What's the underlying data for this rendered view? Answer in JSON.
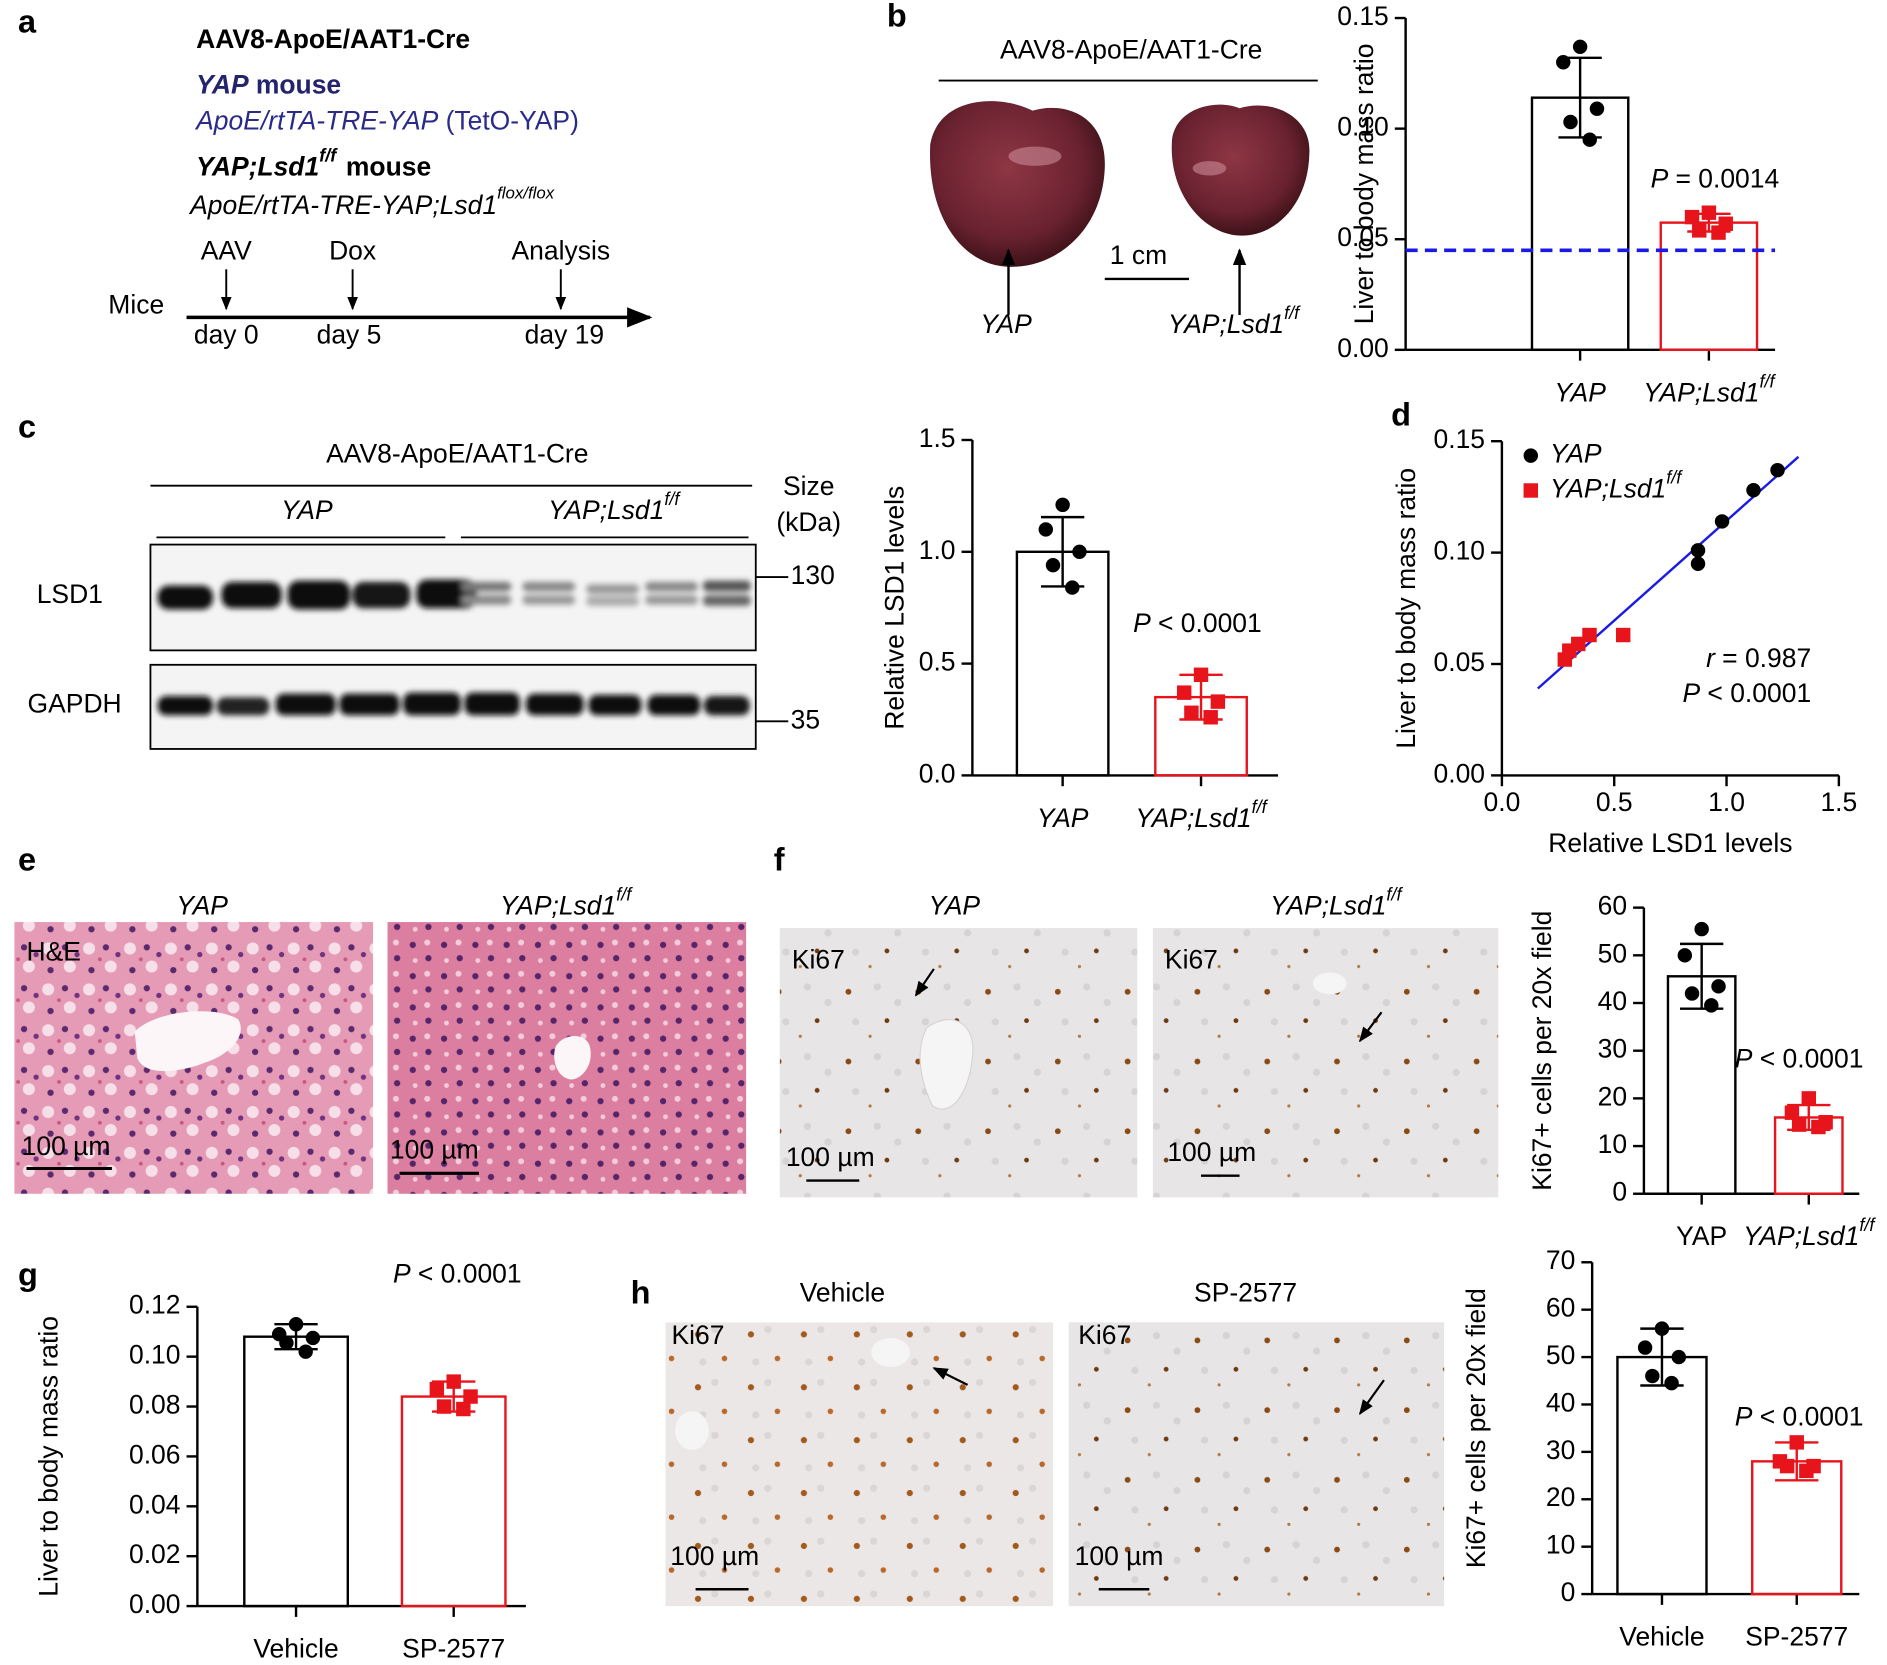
{
  "panel_labels": [
    "a",
    "b",
    "c",
    "d",
    "e",
    "f",
    "g",
    "h"
  ],
  "schematic": {
    "vector": "AAV8-ApoE/AAT1-Cre",
    "mouse1": {
      "genotype": "YAP",
      "label": "mouse"
    },
    "construct1": {
      "name": "ApoE/rtTA-TRE-YAP",
      "note": "(TetO-YAP)"
    },
    "mouse2": {
      "genotype": "YAP;Lsd1",
      "sup": "f/f",
      "label": "mouse"
    },
    "construct2": {
      "name": "ApoE/rtTA-TRE-YAP;Lsd1",
      "sup": "flox/flox"
    },
    "axis_label": "Mice",
    "events": [
      "AAV",
      "Dox",
      "Analysis"
    ],
    "days": [
      "day 0",
      "day 5",
      "day 19"
    ]
  },
  "liver_photo": {
    "header": "AAV8-ApoE/AAT1-Cre",
    "labels": [
      "YAP",
      {
        "text": "YAP;Lsd1",
        "sup": "f/f"
      }
    ],
    "scale": "1 cm"
  },
  "blot": {
    "header": "AAV8-ApoE/AAT1-Cre",
    "groups": [
      "YAP",
      {
        "text": "YAP;Lsd1",
        "sup": "f/f"
      }
    ],
    "size_label": [
      "Size",
      "(kDa)"
    ],
    "proteins": [
      "LSD1",
      "GAPDH"
    ],
    "markers": [
      130,
      35
    ]
  },
  "he_images": {
    "titles": [
      "YAP",
      {
        "text": "YAP;Lsd1",
        "sup": "f/f"
      }
    ],
    "stain": "H&E",
    "scale": "100 µm"
  },
  "ki67_images_f": {
    "titles": [
      "YAP",
      {
        "text": "YAP;Lsd1",
        "sup": "f/f"
      }
    ],
    "stain": "Ki67",
    "scale": "100 µm"
  },
  "ki67_images_h": {
    "titles": [
      "Vehicle",
      "SP-2577"
    ],
    "stain": "Ki67",
    "scale": "100 µm"
  },
  "chart_data": [
    {
      "type": "bar",
      "ylabel": "Liver to body mass ratio",
      "categories": [
        "YAP",
        {
          "text": "YAP;Lsd1",
          "sup": "f/f"
        }
      ],
      "italic_categories": [
        true,
        true
      ],
      "values": [
        0.114,
        0.0575
      ],
      "errors": [
        0.018,
        0.004
      ],
      "points": [
        [
          0.137,
          0.13,
          0.109,
          0.103,
          0.095
        ],
        [
          0.062,
          0.06,
          0.057,
          0.054,
          0.053
        ]
      ],
      "colors": [
        "#000000",
        "#e8141c"
      ],
      "markers": [
        "circle",
        "square"
      ],
      "ylim": [
        0,
        0.15
      ],
      "yticks": [
        {
          "value": 0,
          "label": "0.00"
        },
        {
          "value": 0.05,
          "label": "0.05"
        },
        {
          "value": 0.1,
          "label": "0.10"
        },
        {
          "value": 0.15,
          "label": "0.15"
        }
      ],
      "reference_line": {
        "value": 0.045,
        "color": "#1a1ae6"
      },
      "annotation": {
        "symbol": "P",
        "text": "= 0.0014"
      }
    },
    {
      "type": "bar",
      "ylabel": "Relative LSD1 levels",
      "categories": [
        "YAP",
        {
          "text": "YAP;Lsd1",
          "sup": "f/f"
        }
      ],
      "italic_categories": [
        true,
        true
      ],
      "values": [
        1.0,
        0.35
      ],
      "errors": [
        0.155,
        0.1
      ],
      "points": [
        [
          1.21,
          1.1,
          1.0,
          0.94,
          0.84
        ],
        [
          0.45,
          0.37,
          0.33,
          0.28,
          0.26
        ]
      ],
      "colors": [
        "#000000",
        "#e8141c"
      ],
      "markers": [
        "circle",
        "square"
      ],
      "ylim": [
        0,
        1.5
      ],
      "yticks": [
        {
          "value": 0,
          "label": "0.0"
        },
        {
          "value": 0.5,
          "label": "0.5"
        },
        {
          "value": 1,
          "label": "1.0"
        },
        {
          "value": 1.5,
          "label": "1.5"
        }
      ],
      "annotation": {
        "symbol": "P",
        "text": "< 0.0001"
      }
    },
    {
      "type": "scatter",
      "xlabel": "Relative LSD1 levels",
      "ylabel": "Liver to body mass ratio",
      "series": [
        {
          "name": "YAP",
          "color": "#000000",
          "marker": "circle",
          "x": [
            1.227,
            1.12,
            0.98,
            0.873,
            0.873
          ],
          "y": [
            0.137,
            0.128,
            0.114,
            0.101,
            0.095
          ]
        },
        {
          "name": {
            "text": "YAP;Lsd1",
            "sup": "f/f"
          },
          "color": "#e8141c",
          "marker": "square",
          "x": [
            0.54,
            0.39,
            0.34,
            0.3,
            0.28
          ],
          "y": [
            0.063,
            0.063,
            0.059,
            0.056,
            0.052
          ]
        }
      ],
      "fit_line": {
        "color": "#1a1ae6",
        "x": [
          0.16,
          1.32
        ],
        "y": [
          0.039,
          0.143
        ]
      },
      "xlim": [
        0,
        1.5
      ],
      "xticks": [
        {
          "value": 0,
          "label": "0.0"
        },
        {
          "value": 0.5,
          "label": "0.5"
        },
        {
          "value": 1,
          "label": "1.0"
        },
        {
          "value": 1.5,
          "label": "1.5"
        }
      ],
      "ylim": [
        0,
        0.15
      ],
      "yticks": [
        {
          "value": 0,
          "label": "0.00"
        },
        {
          "value": 0.05,
          "label": "0.05"
        },
        {
          "value": 0.1,
          "label": "0.10"
        },
        {
          "value": 0.15,
          "label": "0.15"
        }
      ],
      "legend": "top-left",
      "annotations": [
        {
          "symbol": "r",
          "text": "= 0.987"
        },
        {
          "symbol": "P",
          "text": "< 0.0001"
        }
      ]
    },
    {
      "type": "bar",
      "ylabel": "Ki67+ cells per 20x field",
      "categories": [
        "YAP",
        {
          "text": "YAP;Lsd1",
          "sup": "f/f"
        }
      ],
      "italic_categories": [
        false,
        true
      ],
      "values": [
        45.6,
        16
      ],
      "errors": [
        6.8,
        2.6
      ],
      "points": [
        [
          55.5,
          50,
          43.5,
          42,
          39.5
        ],
        [
          20,
          17,
          15,
          14.5,
          14
        ]
      ],
      "colors": [
        "#000000",
        "#e8141c"
      ],
      "markers": [
        "circle",
        "square"
      ],
      "ylim": [
        0,
        60
      ],
      "yticks": [
        0,
        10,
        20,
        30,
        40,
        50,
        60
      ],
      "annotation": {
        "symbol": "P",
        "text": "< 0.0001"
      }
    },
    {
      "type": "bar",
      "ylabel": "Liver to body mass ratio",
      "categories": [
        "Vehicle",
        "SP-2577"
      ],
      "italic_categories": [
        false,
        false
      ],
      "values": [
        0.108,
        0.084
      ],
      "errors": [
        0.005,
        0.006
      ],
      "points": [
        [
          0.113,
          0.109,
          0.1075,
          0.1055,
          0.102
        ],
        [
          0.09,
          0.087,
          0.084,
          0.08,
          0.079
        ]
      ],
      "colors": [
        "#000000",
        "#e8141c"
      ],
      "markers": [
        "circle",
        "square"
      ],
      "ylim": [
        0,
        0.12
      ],
      "yticks": [
        {
          "value": 0,
          "label": "0.00"
        },
        {
          "value": 0.02,
          "label": "0.02"
        },
        {
          "value": 0.04,
          "label": "0.04"
        },
        {
          "value": 0.06,
          "label": "0.06"
        },
        {
          "value": 0.08,
          "label": "0.08"
        },
        {
          "value": 0.1,
          "label": "0.10"
        },
        {
          "value": 0.12,
          "label": "0.12"
        }
      ],
      "annotation": {
        "symbol": "P",
        "text": "< 0.0001"
      }
    },
    {
      "type": "bar",
      "ylabel": "Ki67+ cells per 20x field",
      "categories": [
        "Vehicle",
        "SP-2577"
      ],
      "italic_categories": [
        false,
        false
      ],
      "values": [
        50,
        28
      ],
      "errors": [
        6,
        4
      ],
      "points": [
        [
          56,
          52,
          50,
          46,
          44.5
        ],
        [
          32,
          28,
          27,
          27,
          26
        ]
      ],
      "colors": [
        "#000000",
        "#e8141c"
      ],
      "markers": [
        "circle",
        "square"
      ],
      "ylim": [
        0,
        70
      ],
      "yticks": [
        0,
        10,
        20,
        30,
        40,
        50,
        60,
        70
      ],
      "annotation": {
        "symbol": "P",
        "text": "< 0.0001"
      }
    }
  ]
}
